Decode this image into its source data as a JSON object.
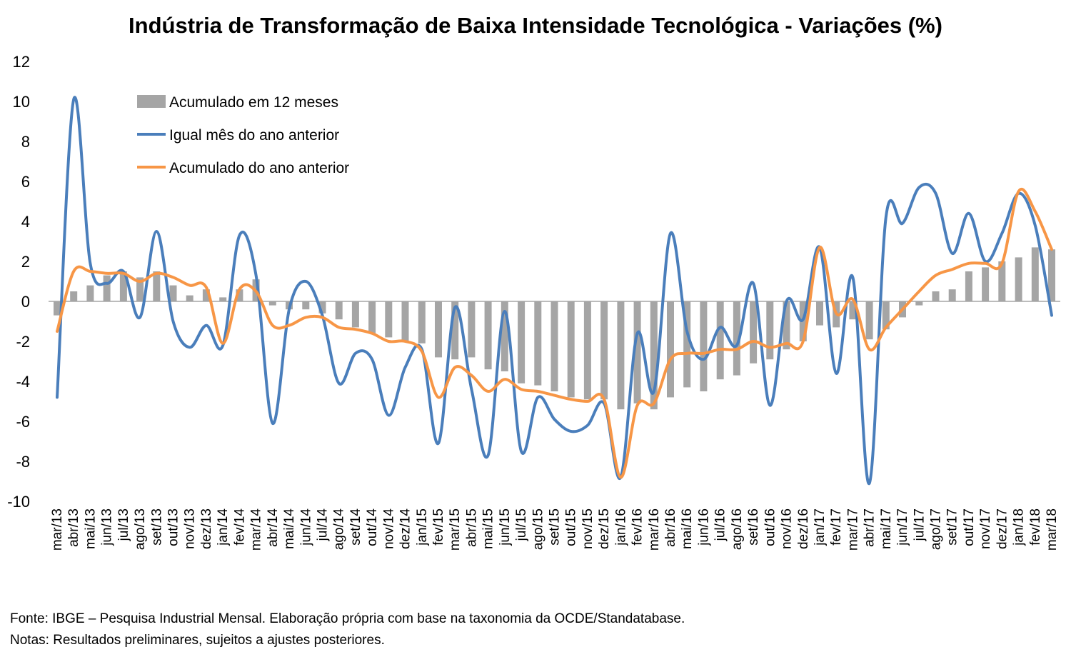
{
  "chart_data": {
    "type": "bar",
    "title": "Indústria de Transformação de Baixa Intensidade Tecnológica - Variações (%)",
    "xlabel": "",
    "ylabel": "",
    "ylim": [
      -10,
      12
    ],
    "yticks": [
      12,
      10,
      8,
      6,
      4,
      2,
      0,
      -2,
      -4,
      -6,
      -8,
      -10
    ],
    "grid": false,
    "legend_position": "top-left",
    "categories": [
      "mar/13",
      "abr/13",
      "mai/13",
      "jun/13",
      "jul/13",
      "ago/13",
      "set/13",
      "out/13",
      "nov/13",
      "dez/13",
      "jan/14",
      "fev/14",
      "mar/14",
      "abr/14",
      "mai/14",
      "jun/14",
      "jul/14",
      "ago/14",
      "set/14",
      "out/14",
      "nov/14",
      "dez/14",
      "jan/15",
      "fev/15",
      "mar/15",
      "abr/15",
      "mai/15",
      "jun/15",
      "jul/15",
      "ago/15",
      "set/15",
      "out/15",
      "nov/15",
      "dez/15",
      "jan/16",
      "fev/16",
      "mar/16",
      "abr/16",
      "mai/16",
      "jun/16",
      "jul/16",
      "ago/16",
      "set/16",
      "out/16",
      "nov/16",
      "dez/16",
      "jan/17",
      "fev/17",
      "mar/17",
      "abr/17",
      "mai/17",
      "jun/17",
      "jul/17",
      "ago/17",
      "set/17",
      "out/17",
      "nov/17",
      "dez/17",
      "jan/18",
      "fev/18",
      "mar/18"
    ],
    "series": [
      {
        "name": "Acumulado em 12 meses",
        "kind": "bar",
        "color": "#a5a5a5",
        "values": [
          -0.7,
          0.5,
          0.8,
          1.3,
          1.5,
          1.2,
          1.5,
          0.8,
          0.3,
          0.6,
          0.2,
          0.6,
          1.1,
          -0.2,
          -0.4,
          -0.4,
          -0.6,
          -0.9,
          -1.3,
          -1.6,
          -1.8,
          -2.0,
          -2.1,
          -2.8,
          -2.9,
          -2.8,
          -3.4,
          -3.5,
          -4.1,
          -4.2,
          -4.5,
          -4.8,
          -4.9,
          -4.9,
          -5.4,
          -5.1,
          -5.4,
          -4.8,
          -4.3,
          -4.5,
          -3.9,
          -3.7,
          -3.1,
          -2.9,
          -2.4,
          -2.0,
          -1.2,
          -1.3,
          -0.9,
          -1.9,
          -1.4,
          -0.8,
          -0.2,
          0.5,
          0.6,
          1.5,
          1.7,
          2.0,
          2.2,
          2.7,
          2.6
        ]
      },
      {
        "name": "Igual mês do ano anterior",
        "kind": "line",
        "color": "#4a7ebb",
        "values": [
          -4.8,
          10.1,
          1.9,
          0.9,
          1.5,
          -0.8,
          3.5,
          -1.0,
          -2.3,
          -1.2,
          -2.2,
          3.3,
          1.3,
          -6.1,
          -0.4,
          1.0,
          -0.7,
          -4.1,
          -2.6,
          -2.9,
          -5.7,
          -3.3,
          -2.4,
          -7.1,
          -0.3,
          -4.4,
          -7.7,
          -0.5,
          -7.5,
          -4.8,
          -5.9,
          -6.5,
          -6.2,
          -5.1,
          -8.8,
          -1.6,
          -4.5,
          3.4,
          -1.5,
          -2.9,
          -1.3,
          -2.2,
          0.9,
          -5.2,
          0.0,
          -0.9,
          2.7,
          -3.6,
          1.2,
          -9.1,
          4.2,
          3.9,
          5.7,
          5.4,
          2.4,
          4.4,
          2.0,
          3.4,
          5.4,
          3.8,
          -0.7
        ]
      },
      {
        "name": "Acumulado do ano anterior",
        "kind": "line",
        "color": "#f79646",
        "values": [
          -1.5,
          1.5,
          1.5,
          1.4,
          1.4,
          1.0,
          1.4,
          1.2,
          0.8,
          0.7,
          -2.1,
          0.6,
          0.5,
          -1.2,
          -1.2,
          -0.8,
          -0.8,
          -1.3,
          -1.4,
          -1.6,
          -2.0,
          -2.0,
          -2.5,
          -4.8,
          -3.3,
          -3.7,
          -4.5,
          -3.9,
          -4.4,
          -4.5,
          -4.7,
          -4.9,
          -5.0,
          -4.9,
          -8.8,
          -5.2,
          -5.1,
          -2.9,
          -2.6,
          -2.6,
          -2.4,
          -2.4,
          -2.0,
          -2.3,
          -2.1,
          -2.0,
          2.7,
          -0.6,
          0.1,
          -2.4,
          -1.3,
          -0.4,
          0.5,
          1.3,
          1.6,
          1.9,
          1.9,
          1.9,
          5.5,
          4.5,
          2.6
        ]
      }
    ]
  },
  "notes": {
    "source": "Fonte: IBGE – Pesquisa Industrial Mensal. Elaboração própria com base na taxonomia da OCDE/Standatabase.",
    "notes": "Notas: Resultados preliminares, sujeitos a ajustes posteriores."
  }
}
